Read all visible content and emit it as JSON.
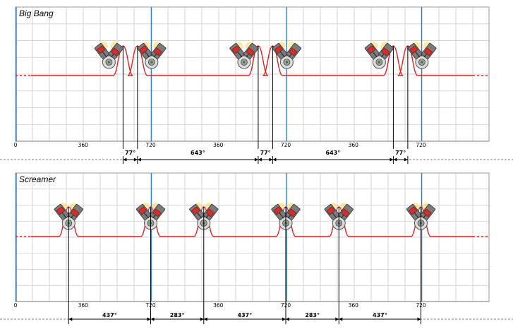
{
  "panels": [
    {
      "id": "big-bang",
      "title": "Big Bang",
      "axis_labels": [
        "0",
        "360",
        "720",
        "360",
        "720",
        "360",
        "720"
      ],
      "events_deg": [
        573,
        650,
        1293,
        1370,
        2013,
        2090
      ],
      "intervals": [
        "77°",
        "643°",
        "77°",
        "643°",
        "77°"
      ],
      "engine_icon": "v-twin-engine-icon"
    },
    {
      "id": "screamer",
      "title": "Screamer",
      "axis_labels": [
        "0",
        "360",
        "720",
        "360",
        "720",
        "360",
        "720"
      ],
      "events_deg": [
        283,
        720,
        1003,
        1440,
        1723,
        2160
      ],
      "intervals": [
        "437°",
        "283°",
        "437°",
        "283°",
        "437°"
      ],
      "engine_icon": "v-twin-engine-icon"
    }
  ],
  "colors": {
    "grid": "#c9c9c9",
    "panel_border": "#9a9a9a",
    "cycle_line": "#2f7fd0",
    "trace": "#e02020",
    "piston": "#d23030",
    "engine_body": "#7a7a7a",
    "spark": "#ffd860"
  }
}
